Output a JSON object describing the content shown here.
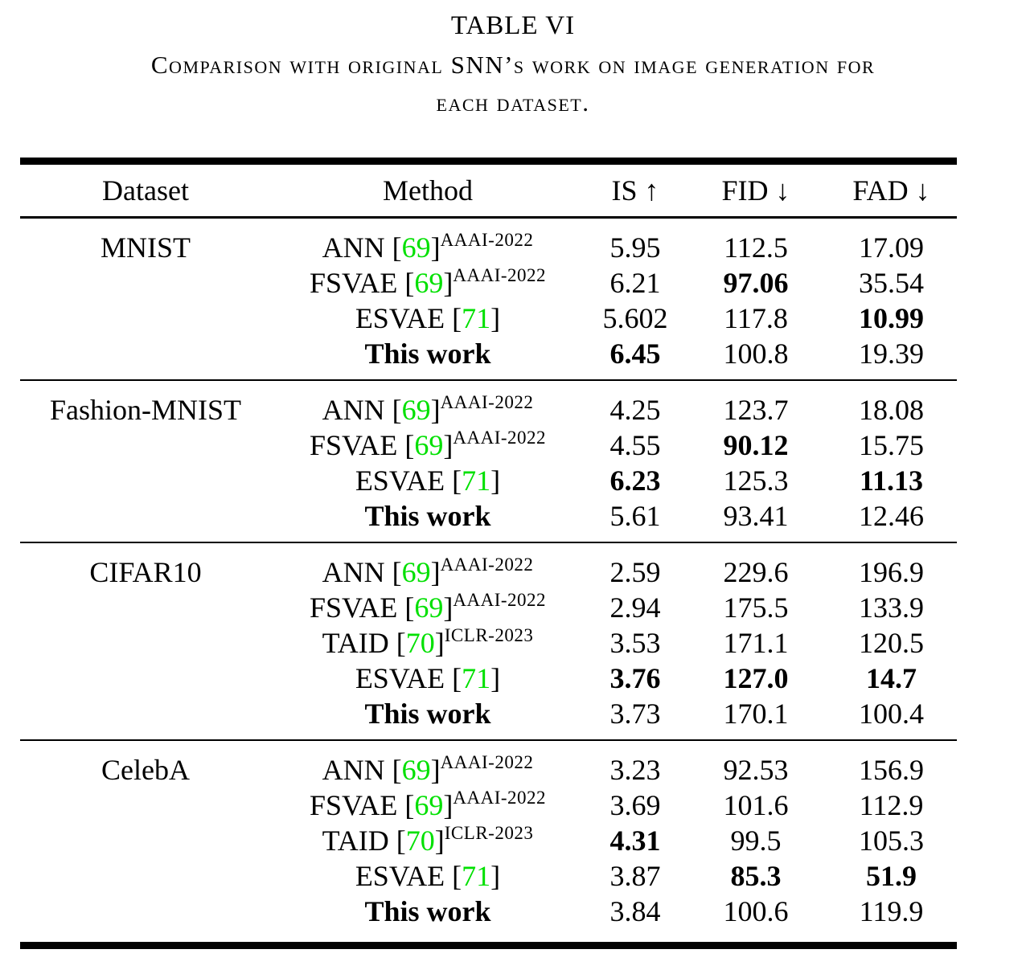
{
  "title": "TABLE VI",
  "caption_lines": {
    "line1": "Comparison with original SNN’s work on image generation for",
    "line2": "each dataset."
  },
  "colors": {
    "citation_green": "#00e000",
    "text": "#000000",
    "background": "#ffffff"
  },
  "table": {
    "columns": [
      "Dataset",
      "Method",
      "IS ↑",
      "FID ↓",
      "FAD ↓"
    ],
    "sections": [
      {
        "dataset": "MNIST",
        "rows": [
          {
            "method": {
              "name": "ANN",
              "cite": "69",
              "sup": "AAAI-2022",
              "bold": false
            },
            "is": {
              "v": "5.95",
              "b": false
            },
            "fid": {
              "v": "112.5",
              "b": false
            },
            "fad": {
              "v": "17.09",
              "b": false
            }
          },
          {
            "method": {
              "name": "FSVAE",
              "cite": "69",
              "sup": "AAAI-2022",
              "bold": false
            },
            "is": {
              "v": "6.21",
              "b": false
            },
            "fid": {
              "v": "97.06",
              "b": true
            },
            "fad": {
              "v": "35.54",
              "b": false
            }
          },
          {
            "method": {
              "name": "ESVAE",
              "cite": "71",
              "sup": "",
              "bold": false
            },
            "is": {
              "v": "5.602",
              "b": false
            },
            "fid": {
              "v": "117.8",
              "b": false
            },
            "fad": {
              "v": "10.99",
              "b": true
            }
          },
          {
            "method": {
              "name": "This work",
              "cite": "",
              "sup": "",
              "bold": true
            },
            "is": {
              "v": "6.45",
              "b": true
            },
            "fid": {
              "v": "100.8",
              "b": false
            },
            "fad": {
              "v": "19.39",
              "b": false
            }
          }
        ]
      },
      {
        "dataset": "Fashion-MNIST",
        "rows": [
          {
            "method": {
              "name": "ANN",
              "cite": "69",
              "sup": "AAAI-2022",
              "bold": false
            },
            "is": {
              "v": "4.25",
              "b": false
            },
            "fid": {
              "v": "123.7",
              "b": false
            },
            "fad": {
              "v": "18.08",
              "b": false
            }
          },
          {
            "method": {
              "name": "FSVAE",
              "cite": "69",
              "sup": "AAAI-2022",
              "bold": false
            },
            "is": {
              "v": "4.55",
              "b": false
            },
            "fid": {
              "v": "90.12",
              "b": true
            },
            "fad": {
              "v": "15.75",
              "b": false
            }
          },
          {
            "method": {
              "name": "ESVAE",
              "cite": "71",
              "sup": "",
              "bold": false
            },
            "is": {
              "v": "6.23",
              "b": true
            },
            "fid": {
              "v": "125.3",
              "b": false
            },
            "fad": {
              "v": "11.13",
              "b": true
            }
          },
          {
            "method": {
              "name": "This work",
              "cite": "",
              "sup": "",
              "bold": true
            },
            "is": {
              "v": "5.61",
              "b": false
            },
            "fid": {
              "v": "93.41",
              "b": false
            },
            "fad": {
              "v": "12.46",
              "b": false
            }
          }
        ]
      },
      {
        "dataset": "CIFAR10",
        "rows": [
          {
            "method": {
              "name": "ANN",
              "cite": "69",
              "sup": "AAAI-2022",
              "bold": false
            },
            "is": {
              "v": "2.59",
              "b": false
            },
            "fid": {
              "v": "229.6",
              "b": false
            },
            "fad": {
              "v": "196.9",
              "b": false
            }
          },
          {
            "method": {
              "name": "FSVAE",
              "cite": "69",
              "sup": "AAAI-2022",
              "bold": false
            },
            "is": {
              "v": "2.94",
              "b": false
            },
            "fid": {
              "v": "175.5",
              "b": false
            },
            "fad": {
              "v": "133.9",
              "b": false
            }
          },
          {
            "method": {
              "name": "TAID",
              "cite": "70",
              "sup": "ICLR-2023",
              "bold": false
            },
            "is": {
              "v": "3.53",
              "b": false
            },
            "fid": {
              "v": "171.1",
              "b": false
            },
            "fad": {
              "v": "120.5",
              "b": false
            }
          },
          {
            "method": {
              "name": "ESVAE",
              "cite": "71",
              "sup": "",
              "bold": false
            },
            "is": {
              "v": "3.76",
              "b": true
            },
            "fid": {
              "v": "127.0",
              "b": true
            },
            "fad": {
              "v": "14.7",
              "b": true
            }
          },
          {
            "method": {
              "name": "This work",
              "cite": "",
              "sup": "",
              "bold": true
            },
            "is": {
              "v": "3.73",
              "b": false
            },
            "fid": {
              "v": "170.1",
              "b": false
            },
            "fad": {
              "v": "100.4",
              "b": false
            }
          }
        ]
      },
      {
        "dataset": "CelebA",
        "rows": [
          {
            "method": {
              "name": "ANN",
              "cite": "69",
              "sup": "AAAI-2022",
              "bold": false
            },
            "is": {
              "v": "3.23",
              "b": false
            },
            "fid": {
              "v": "92.53",
              "b": false
            },
            "fad": {
              "v": "156.9",
              "b": false
            }
          },
          {
            "method": {
              "name": "FSVAE",
              "cite": "69",
              "sup": "AAAI-2022",
              "bold": false
            },
            "is": {
              "v": "3.69",
              "b": false
            },
            "fid": {
              "v": "101.6",
              "b": false
            },
            "fad": {
              "v": "112.9",
              "b": false
            }
          },
          {
            "method": {
              "name": "TAID",
              "cite": "70",
              "sup": "ICLR-2023",
              "bold": false
            },
            "is": {
              "v": "4.31",
              "b": true
            },
            "fid": {
              "v": "99.5",
              "b": false
            },
            "fad": {
              "v": "105.3",
              "b": false
            }
          },
          {
            "method": {
              "name": "ESVAE",
              "cite": "71",
              "sup": "",
              "bold": false
            },
            "is": {
              "v": "3.87",
              "b": false
            },
            "fid": {
              "v": "85.3",
              "b": true
            },
            "fad": {
              "v": "51.9",
              "b": true
            }
          },
          {
            "method": {
              "name": "This work",
              "cite": "",
              "sup": "",
              "bold": true
            },
            "is": {
              "v": "3.84",
              "b": false
            },
            "fid": {
              "v": "100.6",
              "b": false
            },
            "fad": {
              "v": "119.9",
              "b": false
            }
          }
        ]
      }
    ]
  }
}
